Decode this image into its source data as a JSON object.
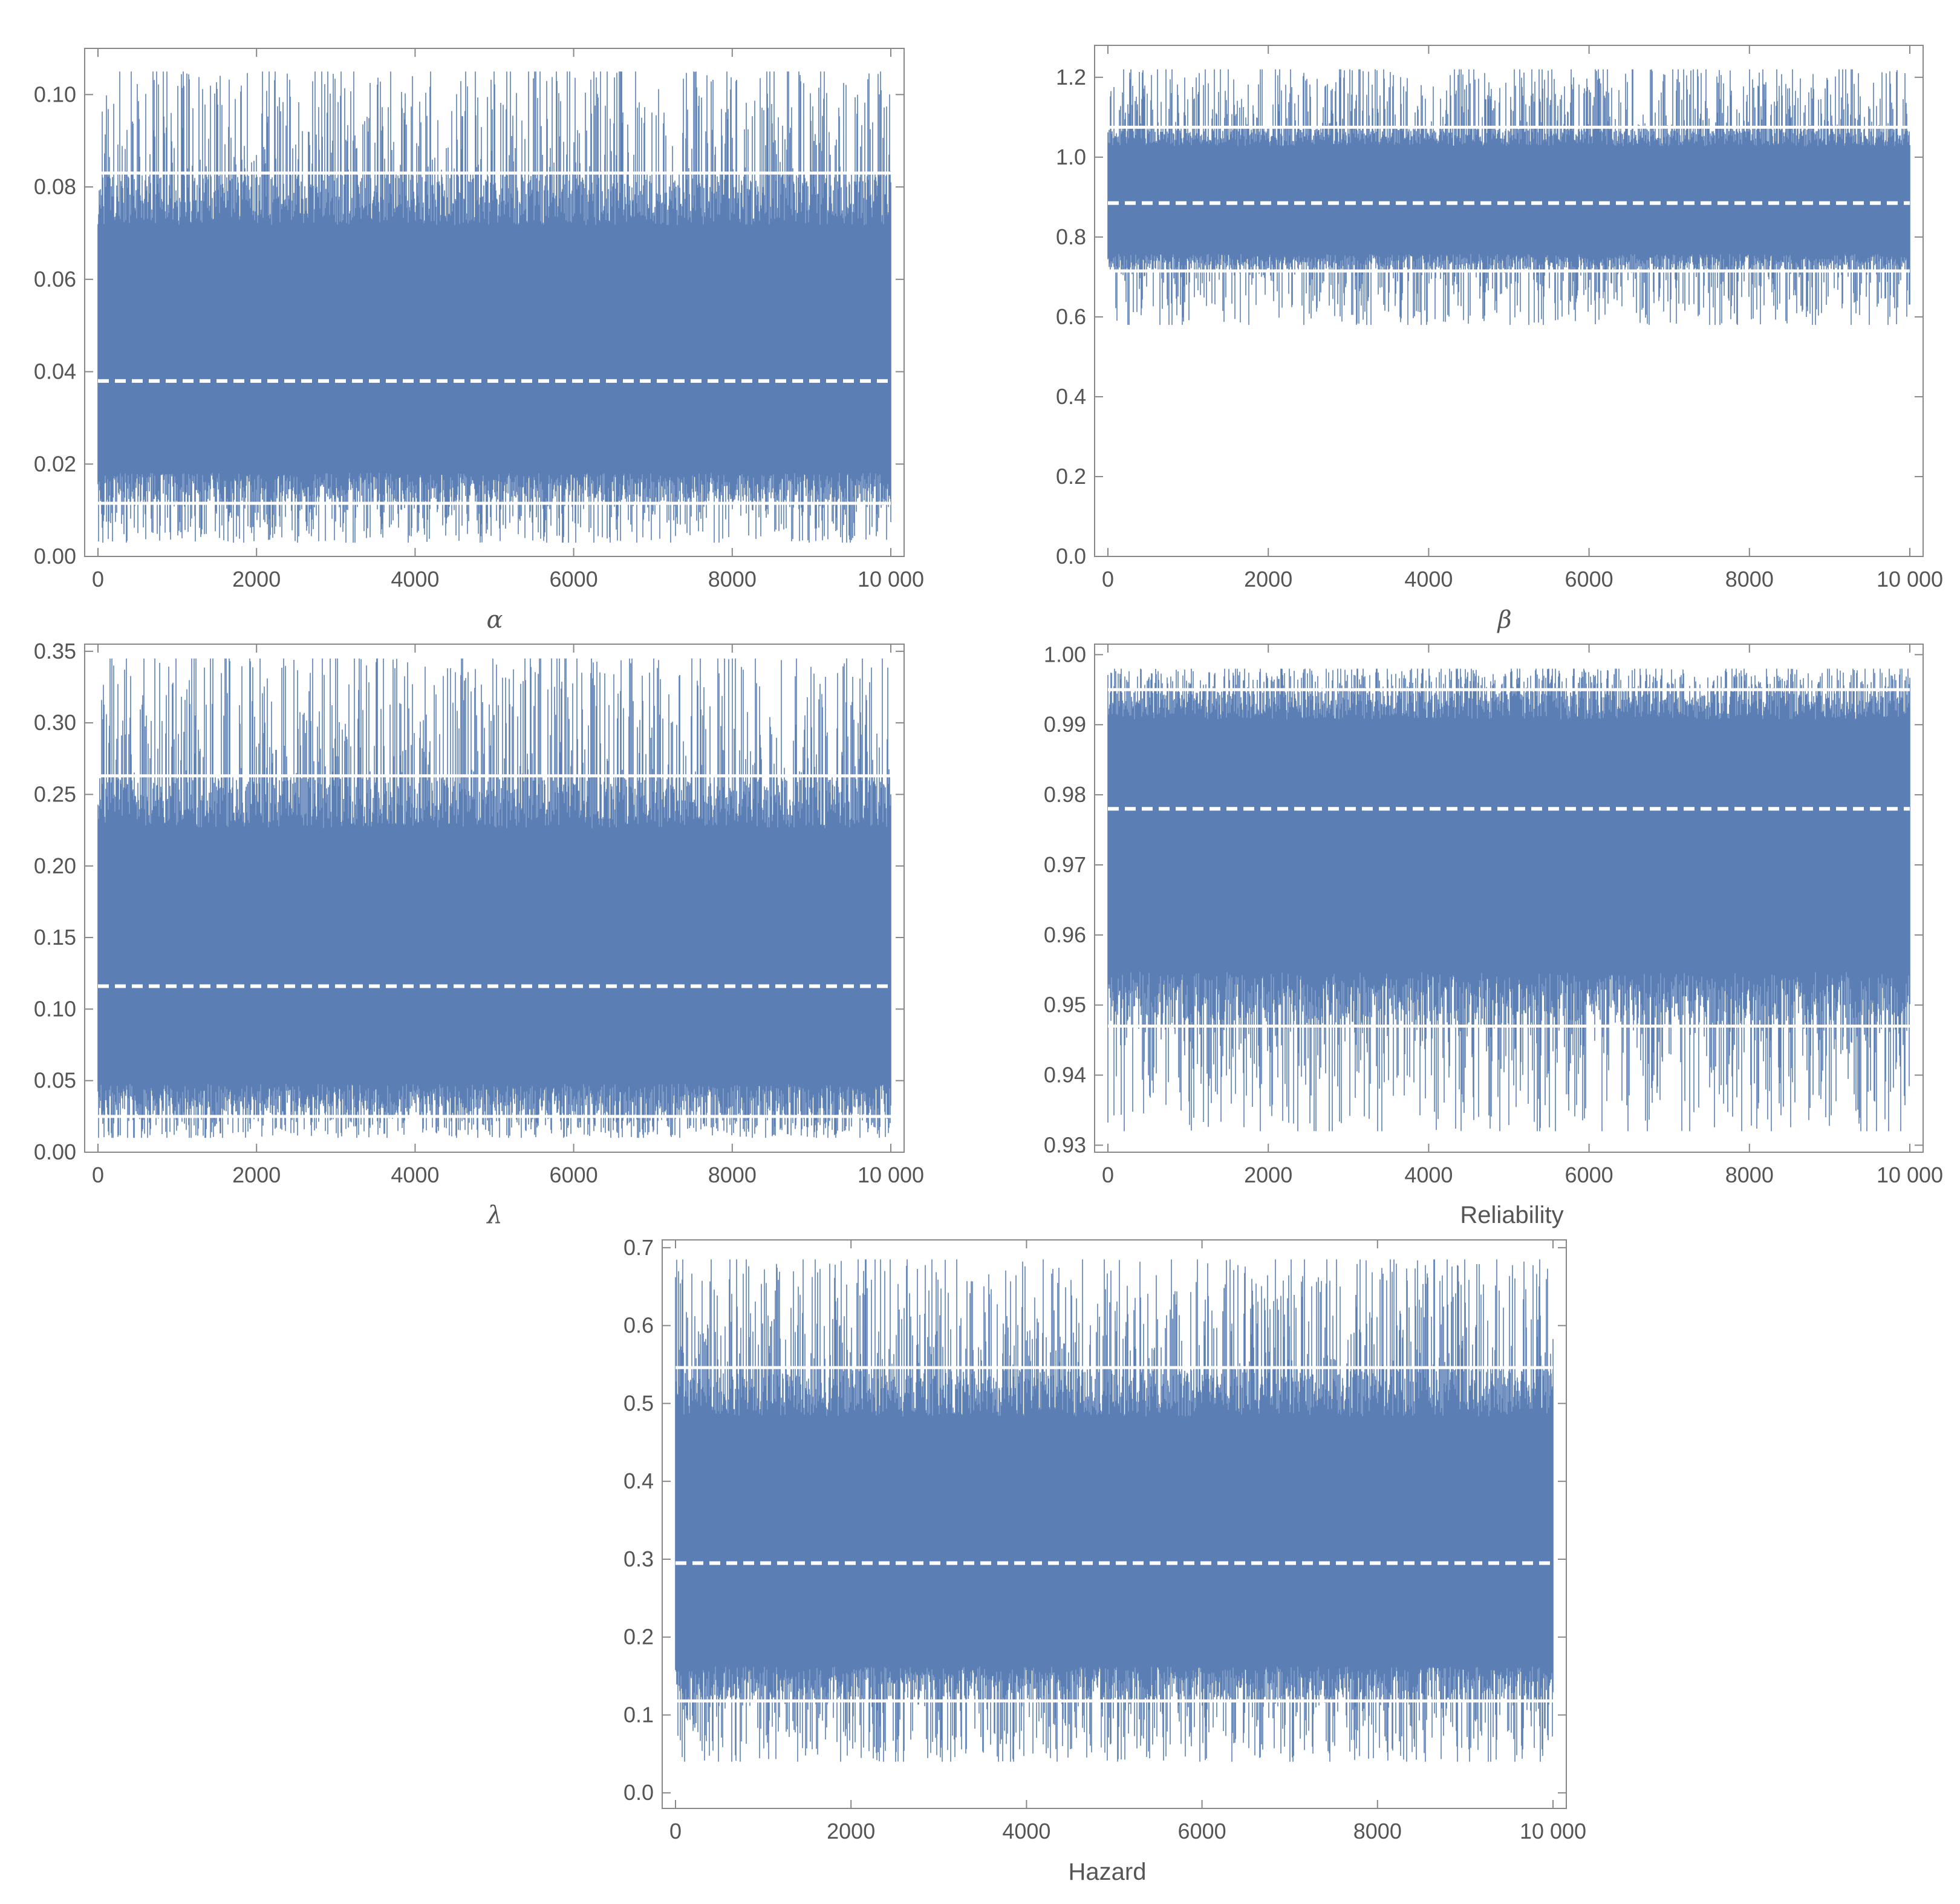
{
  "colors": {
    "trace": "#5b7fb5",
    "frame": "#888888",
    "interval_lines": "#ffffff",
    "background": "#ffffff"
  },
  "chart_data": [
    {
      "type": "line",
      "xlabel": "α",
      "xlim": [
        0,
        10000
      ],
      "ylim": [
        0.0,
        0.11
      ],
      "xticks": [
        0,
        2000,
        4000,
        6000,
        8000,
        10000
      ],
      "xtick_labels": [
        "0",
        "2000",
        "4000",
        "6000",
        "8000",
        "10 000"
      ],
      "yticks": [
        0.0,
        0.02,
        0.04,
        0.06,
        0.08,
        0.1
      ],
      "ytick_labels": [
        "0.00",
        "0.02",
        "0.04",
        "0.06",
        "0.08",
        "0.10"
      ],
      "n_iterations": 10000,
      "trace_center": 0.038,
      "trace_range": [
        0.003,
        0.105
      ],
      "mean_line": 0.038,
      "interval_lines": [
        0.0115,
        0.083
      ],
      "grid": false
    },
    {
      "type": "line",
      "xlabel": "β",
      "xlim": [
        0,
        10000
      ],
      "ylim": [
        0.0,
        1.28
      ],
      "xticks": [
        0,
        2000,
        4000,
        6000,
        8000,
        10000
      ],
      "xtick_labels": [
        "0",
        "2000",
        "4000",
        "6000",
        "8000",
        "10 000"
      ],
      "yticks": [
        0.0,
        0.2,
        0.4,
        0.6,
        0.8,
        1.0,
        1.2
      ],
      "ytick_labels": [
        "0.0",
        "0.2",
        "0.4",
        "0.6",
        "0.8",
        "1.0",
        "1.2"
      ],
      "n_iterations": 10000,
      "trace_center": 0.885,
      "trace_range": [
        0.58,
        1.22
      ],
      "mean_line": 0.885,
      "interval_lines": [
        0.715,
        1.075
      ],
      "grid": false
    },
    {
      "type": "line",
      "xlabel": "λ",
      "xlim": [
        0,
        10000
      ],
      "ylim": [
        0.0,
        0.355
      ],
      "xticks": [
        0,
        2000,
        4000,
        6000,
        8000,
        10000
      ],
      "xtick_labels": [
        "0",
        "2000",
        "4000",
        "6000",
        "8000",
        "10 000"
      ],
      "yticks": [
        0.0,
        0.05,
        0.1,
        0.15,
        0.2,
        0.25,
        0.3,
        0.35
      ],
      "ytick_labels": [
        "0.00",
        "0.05",
        "0.10",
        "0.15",
        "0.20",
        "0.25",
        "0.30",
        "0.35"
      ],
      "n_iterations": 10000,
      "trace_center": 0.116,
      "trace_range": [
        0.01,
        0.345
      ],
      "mean_line": 0.116,
      "interval_lines": [
        0.025,
        0.263
      ],
      "grid": false
    },
    {
      "type": "line",
      "xlabel": "Reliability",
      "xlim": [
        0,
        10000
      ],
      "ylim": [
        0.929,
        1.0015
      ],
      "xticks": [
        0,
        2000,
        4000,
        6000,
        8000,
        10000
      ],
      "xtick_labels": [
        "0",
        "2000",
        "4000",
        "6000",
        "8000",
        "10 000"
      ],
      "yticks": [
        0.93,
        0.94,
        0.95,
        0.96,
        0.97,
        0.98,
        0.99,
        1.0
      ],
      "ytick_labels": [
        "0.93",
        "0.94",
        "0.95",
        "0.96",
        "0.97",
        "0.98",
        "0.99",
        "1.00"
      ],
      "n_iterations": 10000,
      "trace_center": 0.978,
      "trace_range": [
        0.932,
        0.998
      ],
      "mean_line": 0.978,
      "interval_lines": [
        0.947,
        0.995
      ],
      "grid": false
    },
    {
      "type": "line",
      "xlabel": "Hazard",
      "xlim": [
        0,
        10000
      ],
      "ylim": [
        -0.02,
        0.71
      ],
      "xticks": [
        0,
        2000,
        4000,
        6000,
        8000,
        10000
      ],
      "xtick_labels": [
        "0",
        "2000",
        "4000",
        "6000",
        "8000",
        "10 000"
      ],
      "yticks": [
        0.0,
        0.1,
        0.2,
        0.3,
        0.4,
        0.5,
        0.6,
        0.7
      ],
      "ytick_labels": [
        "0.0",
        "0.1",
        "0.2",
        "0.3",
        "0.4",
        "0.5",
        "0.6",
        "0.7"
      ],
      "n_iterations": 10000,
      "trace_center": 0.295,
      "trace_range": [
        0.04,
        0.685
      ],
      "mean_line": 0.295,
      "interval_lines": [
        0.118,
        0.546
      ],
      "grid": false
    }
  ]
}
